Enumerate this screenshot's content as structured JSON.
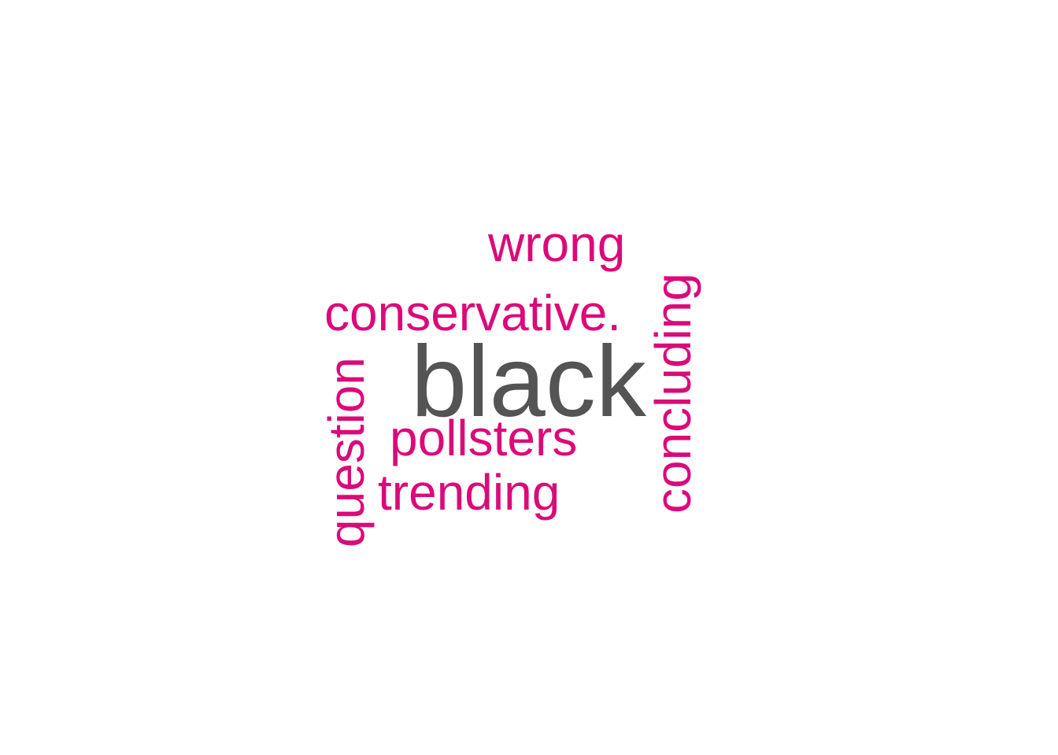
{
  "colors": {
    "background": "#ffffff",
    "accent": "#db0a79",
    "primary": "#545454"
  },
  "wordcloud": {
    "words": [
      {
        "text": "black",
        "orientation": "horizontal",
        "color": "#545454"
      },
      {
        "text": "wrong",
        "orientation": "horizontal",
        "color": "#db0a79"
      },
      {
        "text": "conservative.",
        "orientation": "horizontal",
        "color": "#db0a79"
      },
      {
        "text": "pollsters",
        "orientation": "horizontal",
        "color": "#db0a79"
      },
      {
        "text": "trending",
        "orientation": "horizontal",
        "color": "#db0a79"
      },
      {
        "text": "question",
        "orientation": "vertical",
        "color": "#db0a79"
      },
      {
        "text": "concluding",
        "orientation": "vertical",
        "color": "#db0a79"
      }
    ]
  }
}
